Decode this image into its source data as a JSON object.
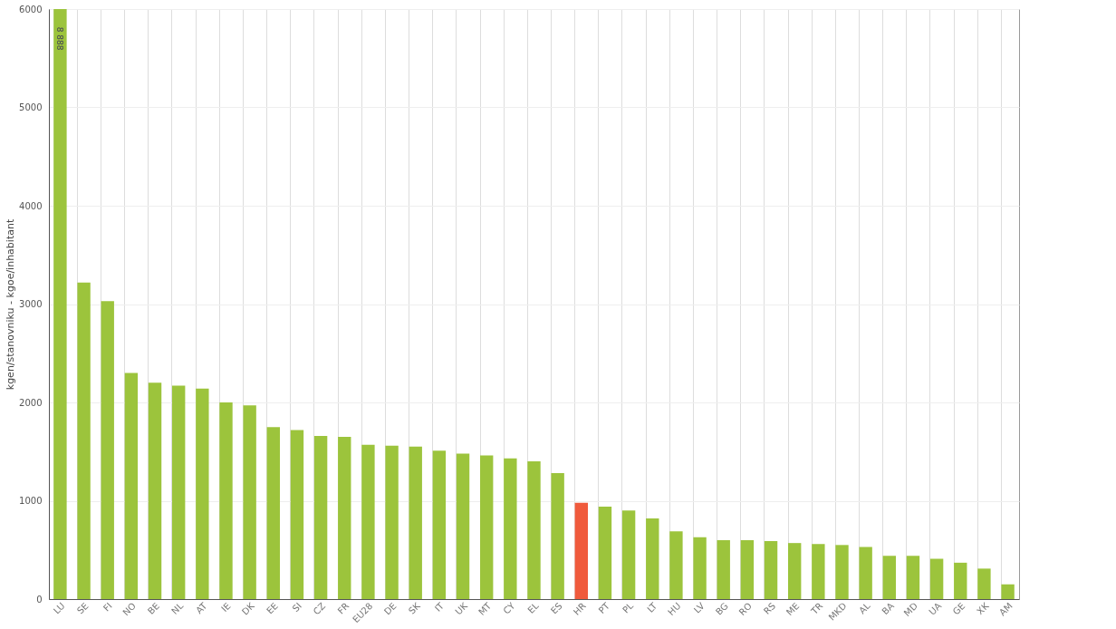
{
  "chart_data": {
    "type": "bar",
    "ylabel": "kgen/stanovniku - kgoe/inhabitant",
    "categories": [
      "LU",
      "SE",
      "FI",
      "NO",
      "BE",
      "NL",
      "AT",
      "IE",
      "DK",
      "EE",
      "SI",
      "CZ",
      "FR",
      "EU28",
      "DE",
      "SK",
      "IT",
      "UK",
      "MT",
      "CY",
      "EL",
      "ES",
      "HR",
      "PT",
      "PL",
      "LT",
      "HU",
      "LV",
      "BG",
      "RO",
      "RS",
      "ME",
      "TR",
      "MKD",
      "AL",
      "BA",
      "MD",
      "UA",
      "GE",
      "XK",
      "AM"
    ],
    "values": [
      6000,
      3220,
      3030,
      2300,
      2200,
      2170,
      2140,
      2000,
      1970,
      1750,
      1720,
      1660,
      1650,
      1570,
      1560,
      1550,
      1510,
      1480,
      1460,
      1430,
      1400,
      1280,
      980,
      940,
      900,
      820,
      690,
      630,
      600,
      600,
      590,
      570,
      560,
      550,
      530,
      440,
      440,
      410,
      370,
      310,
      150
    ],
    "colors": [
      "#9cc43c",
      "#9cc43c",
      "#9cc43c",
      "#9cc43c",
      "#9cc43c",
      "#9cc43c",
      "#9cc43c",
      "#9cc43c",
      "#9cc43c",
      "#9cc43c",
      "#9cc43c",
      "#9cc43c",
      "#9cc43c",
      "#9cc43c",
      "#9cc43c",
      "#9cc43c",
      "#9cc43c",
      "#9cc43c",
      "#9cc43c",
      "#9cc43c",
      "#9cc43c",
      "#9cc43c",
      "#f05a3c",
      "#9cc43c",
      "#9cc43c",
      "#9cc43c",
      "#9cc43c",
      "#9cc43c",
      "#9cc43c",
      "#9cc43c",
      "#9cc43c",
      "#9cc43c",
      "#9cc43c",
      "#9cc43c",
      "#9cc43c",
      "#9cc43c",
      "#9cc43c",
      "#9cc43c",
      "#9cc43c",
      "#9cc43c",
      "#9cc43c"
    ],
    "annotations": [
      {
        "text": "8 888",
        "x": "LU",
        "y": 5700
      }
    ],
    "ylim": [
      0,
      6000
    ],
    "yticks": [
      0,
      1000,
      2000,
      3000,
      4000,
      5000,
      6000
    ],
    "grid": true
  }
}
